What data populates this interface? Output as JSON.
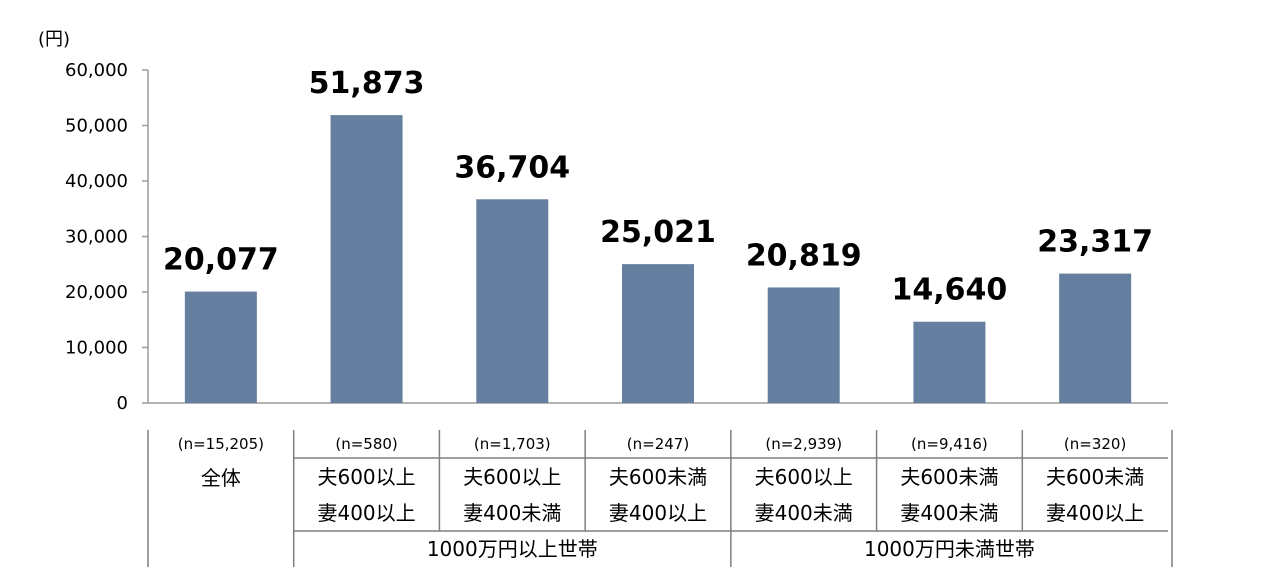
{
  "chart_data": {
    "type": "bar",
    "unit_label": "(円)",
    "ylim": [
      0,
      60000
    ],
    "yticks": [
      "0",
      "10,000",
      "20,000",
      "30,000",
      "40,000",
      "50,000",
      "60,000"
    ],
    "ytick_values": [
      0,
      10000,
      20000,
      30000,
      40000,
      50000,
      60000
    ],
    "grid": false,
    "bar_color": "#647f9f",
    "values": [
      20077,
      51873,
      36704,
      25021,
      20819,
      14640,
      23317
    ],
    "value_labels": [
      "20,077",
      "51,873",
      "36,704",
      "25,021",
      "20,819",
      "14,640",
      "23,317"
    ],
    "categories": [
      {
        "n": "(n=15,205)",
        "lines": [
          "全体"
        ]
      },
      {
        "n": "(n=580)",
        "lines": [
          "夫600以上",
          "妻400以上"
        ]
      },
      {
        "n": "(n=1,703)",
        "lines": [
          "夫600以上",
          "妻400未満"
        ]
      },
      {
        "n": "(n=247)",
        "lines": [
          "夫600未満",
          "妻400以上"
        ]
      },
      {
        "n": "(n=2,939)",
        "lines": [
          "夫600以上",
          "妻400未満"
        ]
      },
      {
        "n": "(n=9,416)",
        "lines": [
          "夫600未満",
          "妻400未満"
        ]
      },
      {
        "n": "(n=320)",
        "lines": [
          "夫600未満",
          "妻400以上"
        ]
      }
    ],
    "groups": [
      {
        "label": "1000万円以上世帯",
        "from": 1,
        "to": 3
      },
      {
        "label": "1000万円未満世帯",
        "from": 4,
        "to": 6
      }
    ]
  }
}
